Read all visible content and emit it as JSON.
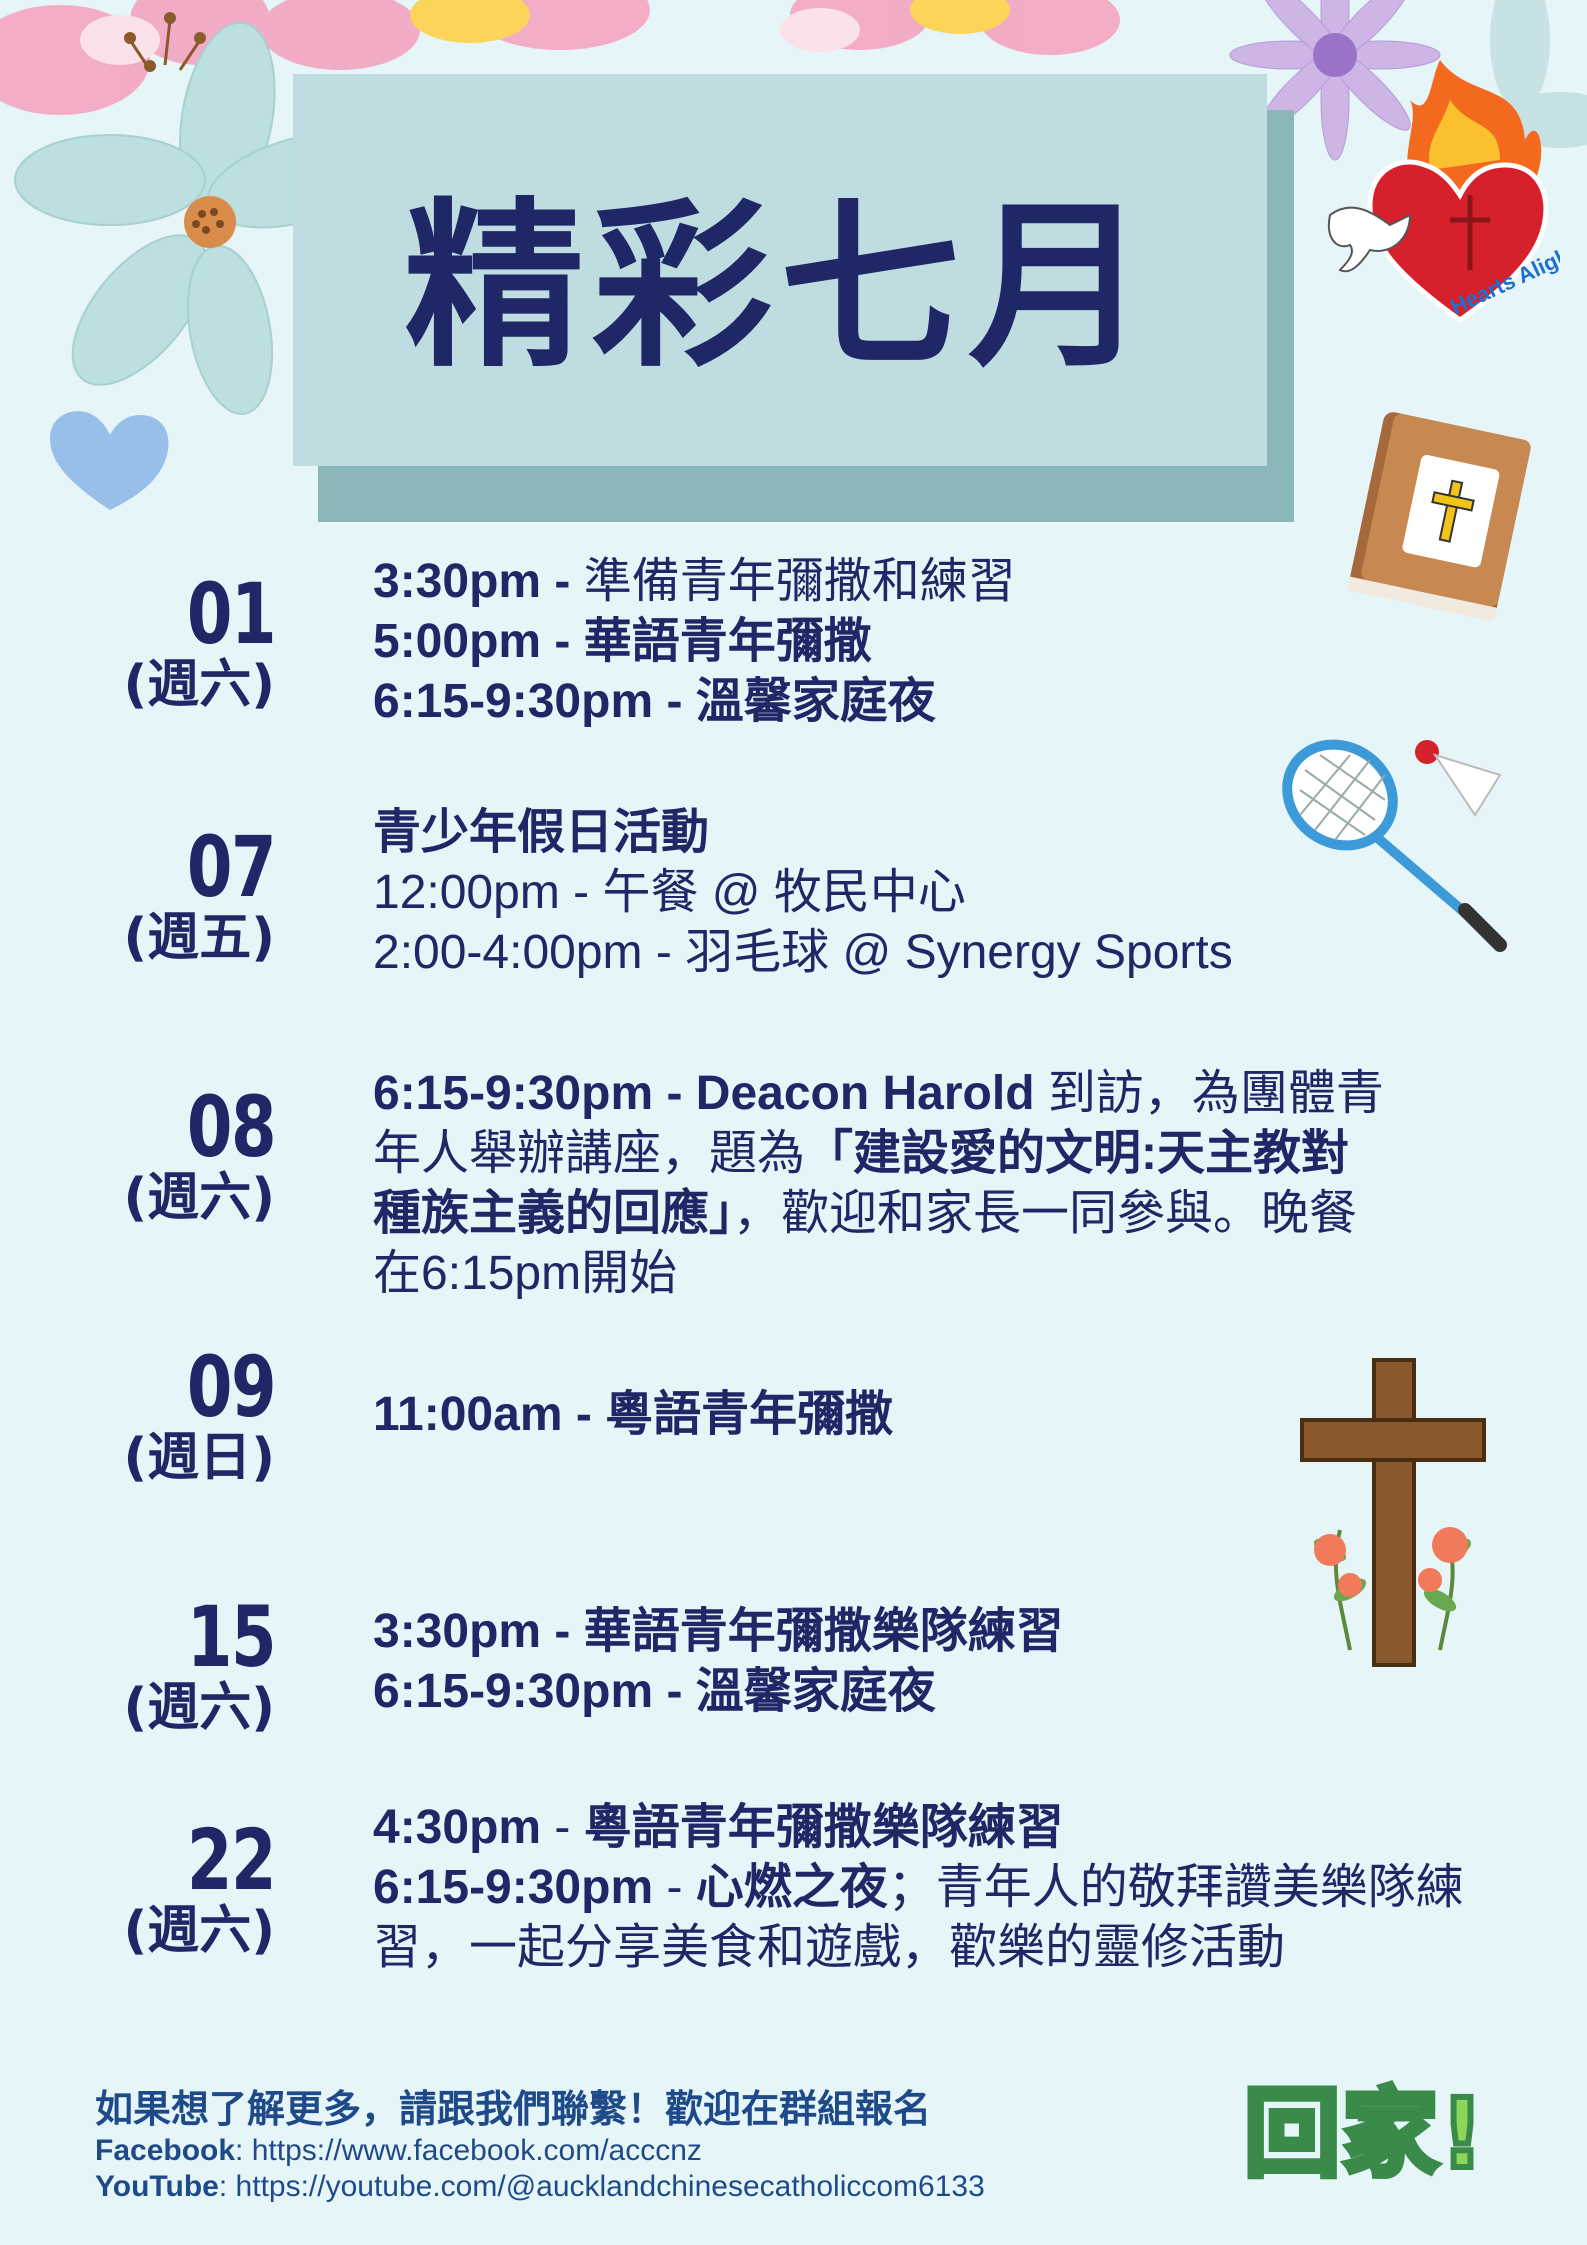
{
  "title": "精彩七月",
  "logo": {
    "text": "Hearts Alight",
    "icon": "flaming-heart-dove-icon"
  },
  "colors": {
    "background": "#e6f6f8",
    "title_box": "#bfdde0",
    "title_shadow": "#8ab6b9",
    "navy": "#1f2766",
    "contact_blue": "#1f4a8a"
  },
  "events": [
    {
      "date": "01",
      "day": "(週六)",
      "lines": [
        {
          "time": "3:30pm - ",
          "text": "準備青年彌撒和練習"
        },
        {
          "time": "5:00pm - ",
          "text": "華語青年彌撒"
        },
        {
          "time": "6:15-9:30pm - ",
          "text": "溫馨家庭夜"
        }
      ]
    },
    {
      "date": "07",
      "day": "(週五)",
      "heading": "青少年假日活動",
      "lines": [
        {
          "text": "12:00pm - 午餐 @ 牧民中心"
        },
        {
          "text": "2:00-4:00pm - 羽毛球 @ Synergy Sports"
        }
      ]
    },
    {
      "date": "08",
      "day": "(週六)",
      "parts": {
        "a": "6:15-9:30pm - Deacon Harold",
        "b": " 到訪，為團體青年人舉辦講座，題為",
        "c": "「建設愛的文明:天主教對種族主義的回應」",
        "d": "，歡迎和家長一同參與。晚餐在6:15pm開始"
      }
    },
    {
      "date": "09",
      "day": "(週日)",
      "lines": [
        {
          "text": "11:00am - 粵語青年彌撒"
        }
      ]
    },
    {
      "date": "15",
      "day": "(週六)",
      "lines": [
        {
          "text": "3:30pm - 華語青年彌撒樂隊練習"
        },
        {
          "text": "6:15-9:30pm - 溫馨家庭夜"
        }
      ]
    },
    {
      "date": "22",
      "day": "(週六)",
      "parts": {
        "a1": "4:30pm",
        "a2": " - ",
        "a3": "粵語青年彌撒樂隊練習",
        "b1": "6:15-9:30pm",
        "b2": " - ",
        "b3": "心燃之夜",
        "b4": "；青年人的敬拜讚美樂隊練習，一起分享美食和遊戲，歡樂的靈修活動"
      }
    }
  ],
  "contact": {
    "heading": "如果想了解更多，請跟我們聯繫！歡迎在群組報名",
    "facebook_label": "Facebook",
    "facebook_url": ": https://www.facebook.com/acccnz",
    "youtube_label": "YouTube",
    "youtube_url": ": https://youtube.com/@aucklandchinesecatholiccom6133"
  },
  "badge": {
    "text": "回家!"
  }
}
